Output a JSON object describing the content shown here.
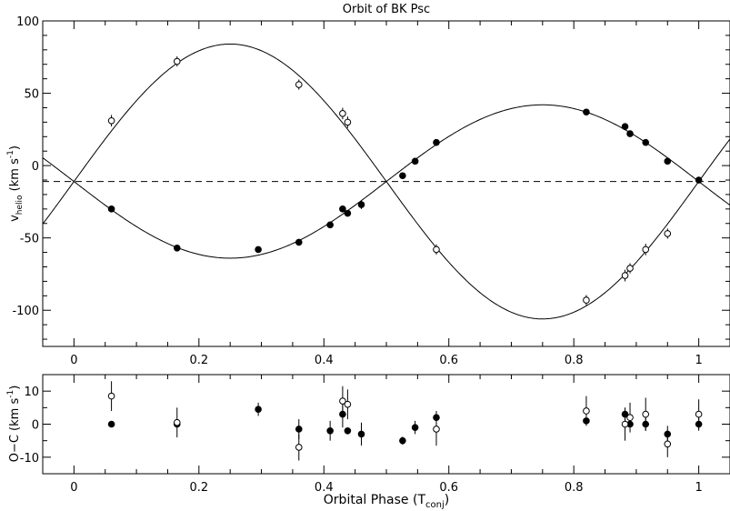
{
  "chart_data": [
    {
      "type": "scatter",
      "title": "Orbit of BK Psc",
      "ylabel": "v_helio (km s^-1)",
      "ylabel_parts": {
        "v": "v",
        "sub": "helio",
        "open": " (km s",
        "sup": "-1",
        "close": ")"
      },
      "xlim": [
        -0.05,
        1.05
      ],
      "ylim": [
        -125,
        100
      ],
      "xticks": [
        0,
        0.2,
        0.4,
        0.6,
        0.8,
        1
      ],
      "xtick_labels": [
        "0",
        "0.2",
        "0.4",
        "0.6",
        "0.8",
        "1"
      ],
      "yticks": [
        -100,
        -50,
        0,
        50,
        100
      ],
      "ytick_labels": [
        "-100",
        "-50",
        "0",
        "50",
        "100"
      ],
      "systemic_velocity": -11,
      "grid": false,
      "curves": [
        {
          "K": 95,
          "gamma": -11,
          "phase_of_max": 0.25
        },
        {
          "K": 53,
          "gamma": -11,
          "phase_of_max": 0.75
        }
      ],
      "series": [
        {
          "marker": "filled-circle",
          "x": [
            0.06,
            0.165,
            0.295,
            0.36,
            0.41,
            0.43,
            0.438,
            0.46,
            0.526,
            0.546,
            0.58,
            0.82,
            0.882,
            0.89,
            0.915,
            0.95,
            1.0
          ],
          "y": [
            -30,
            -57,
            -58,
            -53,
            -41,
            -30,
            -33,
            -27,
            -7,
            3,
            16,
            37,
            27,
            22,
            16,
            3,
            -10
          ],
          "err": [
            1.5,
            1.5,
            1.5,
            1.5,
            2,
            1.5,
            1.5,
            3,
            1.5,
            1.5,
            1.5,
            1.5,
            1.5,
            1.5,
            1.5,
            1.5,
            1.5
          ]
        },
        {
          "marker": "open-circle",
          "x": [
            0.06,
            0.165,
            0.36,
            0.43,
            0.438,
            0.58,
            0.82,
            0.882,
            0.89,
            0.915,
            0.95
          ],
          "y": [
            31,
            72,
            56,
            36,
            30,
            -58,
            -93,
            -76,
            -71,
            -58,
            -47
          ],
          "err": [
            4,
            3.5,
            3.5,
            4,
            4,
            3.5,
            3.5,
            4,
            3.5,
            4,
            3.5
          ]
        }
      ]
    },
    {
      "type": "scatter",
      "xlabel": "Orbital Phase (T_conj)",
      "xlabel_parts": {
        "main": "Orbital Phase (T",
        "sub": "conj",
        "close": ")"
      },
      "ylabel": "O-C (km s^-1)",
      "ylabel_parts": {
        "main": "O−C (km s",
        "sup": "-1",
        "close": ")"
      },
      "xlim": [
        -0.05,
        1.05
      ],
      "ylim": [
        -15,
        15
      ],
      "xticks": [
        0,
        0.2,
        0.4,
        0.6,
        0.8,
        1
      ],
      "xtick_labels": [
        "0",
        "0.2",
        "0.4",
        "0.6",
        "0.8",
        "1"
      ],
      "yticks": [
        -10,
        0,
        10
      ],
      "ytick_labels": [
        "-10",
        "0",
        "10"
      ],
      "grid": false,
      "series": [
        {
          "marker": "filled-circle",
          "x": [
            0.06,
            0.165,
            0.295,
            0.36,
            0.41,
            0.43,
            0.438,
            0.46,
            0.526,
            0.546,
            0.58,
            0.82,
            0.882,
            0.89,
            0.915,
            0.95,
            1.0
          ],
          "y": [
            0,
            0,
            4.5,
            -1.5,
            -2,
            3,
            -2,
            -3,
            -5,
            -1,
            2,
            1,
            3,
            0,
            0,
            -3,
            0
          ],
          "err": [
            0.5,
            0.5,
            2,
            3,
            3,
            4,
            1,
            3.5,
            1.2,
            2,
            2,
            1,
            2,
            1,
            2,
            2.5,
            2
          ]
        },
        {
          "marker": "open-circle",
          "x": [
            0.06,
            0.165,
            0.36,
            0.43,
            0.438,
            0.58,
            0.82,
            0.882,
            0.89,
            0.915,
            0.95,
            1.0
          ],
          "y": [
            8.5,
            0.5,
            -7,
            7,
            6,
            -1.5,
            4,
            0,
            2,
            3,
            -6,
            3
          ],
          "err": [
            4.5,
            4.5,
            4,
            4.5,
            4.5,
            5,
            4.5,
            5,
            4.5,
            5,
            4,
            4.5
          ]
        }
      ]
    }
  ]
}
